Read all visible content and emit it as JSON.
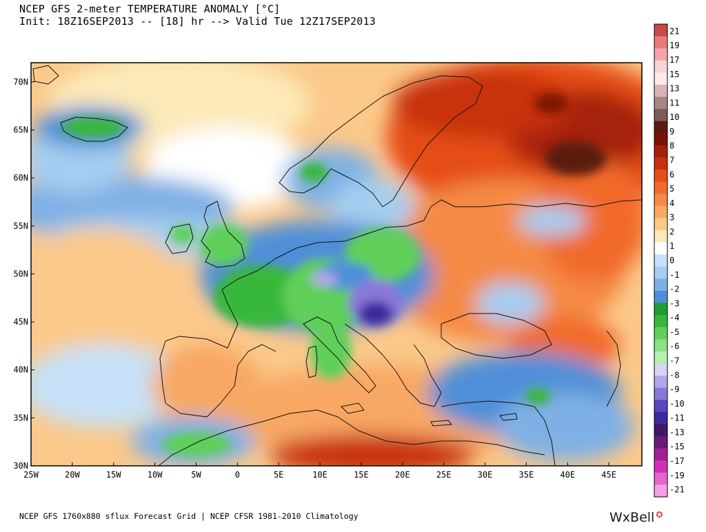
{
  "header": {
    "title_line1": "NCEP GFS 2-meter TEMPERATURE ANOMALY [°C]",
    "title_line2": "Init: 18Z16SEP2013 -- [18] hr --> Valid Tue 12Z17SEP2013"
  },
  "map": {
    "lat_labels": [
      "70N",
      "65N",
      "60N",
      "55N",
      "50N",
      "45N",
      "40N",
      "35N",
      "30N"
    ],
    "lon_labels": [
      "25W",
      "20W",
      "15W",
      "10W",
      "5W",
      "0",
      "5E",
      "10E",
      "15E",
      "20E",
      "25E",
      "30E",
      "35E",
      "40E",
      "45E"
    ],
    "lat_values": [
      70,
      65,
      60,
      55,
      50,
      45,
      40,
      35,
      30
    ],
    "lon_values": [
      -25,
      -20,
      -15,
      -10,
      -5,
      0,
      5,
      10,
      15,
      20,
      25,
      30,
      35,
      40,
      45
    ],
    "extent": {
      "lon_min": -25,
      "lon_max": 49,
      "lat_min": 30,
      "lat_max": 72
    }
  },
  "colorbar": {
    "labels": [
      "21",
      "19",
      "17",
      "15",
      "13",
      "11",
      "10",
      "9",
      "8",
      "7",
      "6",
      "5",
      "4",
      "3",
      "2",
      "1",
      "0",
      "-1",
      "-2",
      "-3",
      "-4",
      "-5",
      "-6",
      "-7",
      "-8",
      "-9",
      "-10",
      "-11",
      "-13",
      "-15",
      "-17",
      "-19",
      "-21"
    ],
    "colors": [
      "#c74a4a",
      "#ea7a7a",
      "#f3a6a6",
      "#f7d4d4",
      "#fbebeb",
      "#d7b3b3",
      "#a88582",
      "#7e5a55",
      "#5c1b10",
      "#7a1206",
      "#a5200c",
      "#c8300f",
      "#e54e17",
      "#f16a2c",
      "#f58a45",
      "#f8a863",
      "#fbc98a",
      "#fde9b8",
      "#ffffff",
      "#c6e1f7",
      "#a6cdf0",
      "#7fb0e5",
      "#4f8fd8",
      "#1f9e2f",
      "#38b83a",
      "#5fcf5a",
      "#8ae083",
      "#b5efae",
      "#d8d4f3",
      "#b3a6e8",
      "#8a78d9",
      "#5b43c2",
      "#3a2a9e",
      "#401864",
      "#6c1a7a",
      "#a0208f",
      "#d12fb8",
      "#e764cf",
      "#f2a0e5"
    ]
  },
  "footer": {
    "left": "NCEP GFS 1760x880 sflux Forecast Grid | NCEP CFSR 1981-2010 Climatology",
    "brand": "WxBell"
  }
}
